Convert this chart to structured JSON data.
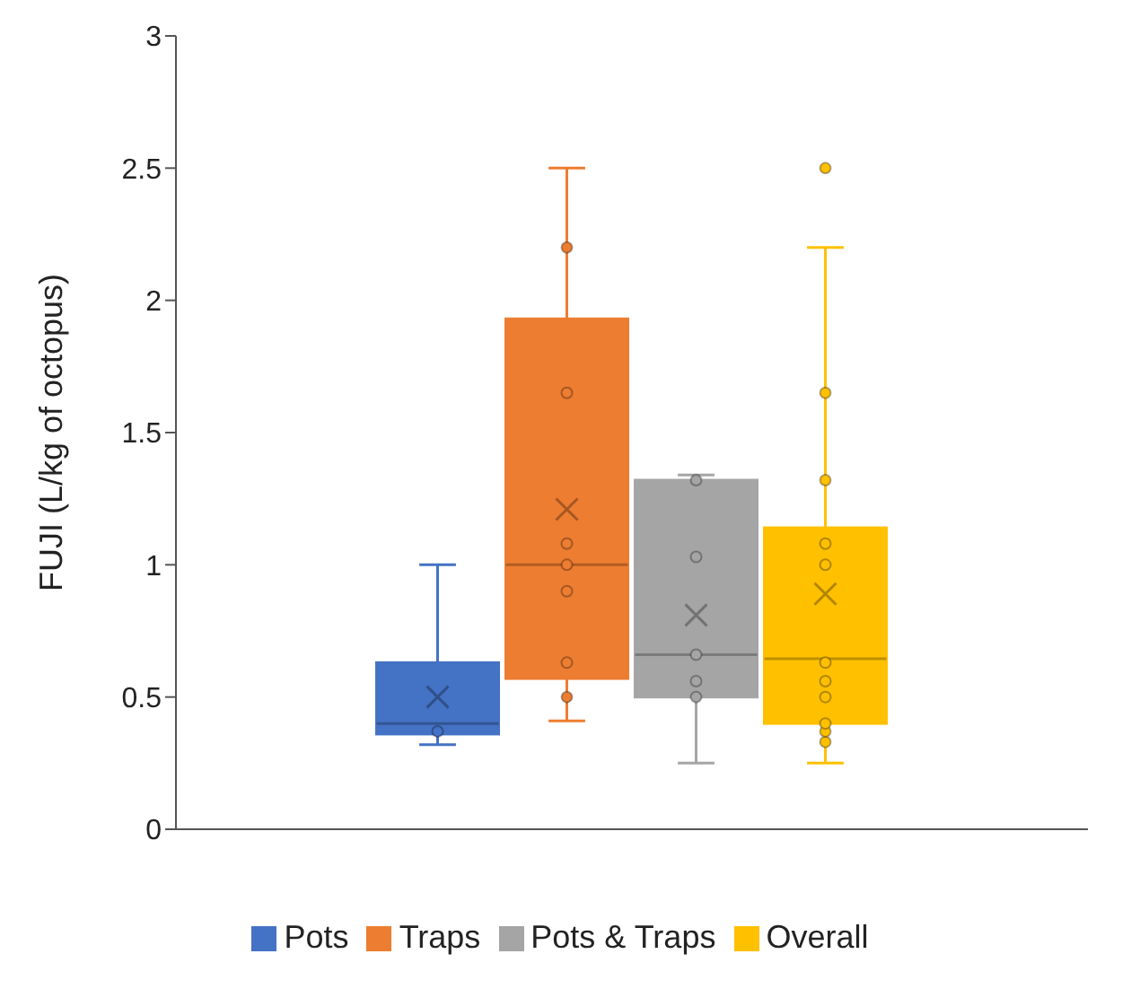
{
  "chart_data": {
    "type": "box",
    "ylabel": "FUJI (L/kg of octopus)",
    "categories": [
      null
    ],
    "ylim": [
      0,
      3
    ],
    "yticks": [
      0,
      0.5,
      1,
      1.5,
      2,
      2.5,
      3
    ],
    "legend": "bottom",
    "tick_labels": "y",
    "series": [
      {
        "name": "Pots",
        "color": "#4472c4",
        "boxes": [
          {
            "low": 0.32,
            "q1": 0.36,
            "median": 0.4,
            "q3": 0.63,
            "high": 1.0,
            "mean": 0.5,
            "outliers": [
              0.37
            ]
          }
        ]
      },
      {
        "name": "Traps",
        "color": "#ed7d31",
        "boxes": [
          {
            "low": 0.41,
            "q1": 0.57,
            "median": 1.0,
            "q3": 1.93,
            "high": 2.5,
            "mean": 1.21,
            "outliers": [
              0.5,
              0.63,
              0.9,
              1.0,
              1.08,
              1.65,
              2.2
            ]
          }
        ]
      },
      {
        "name": "Pots & Traps",
        "color": "#a5a5a5",
        "boxes": [
          {
            "low": 0.25,
            "q1": 0.5,
            "median": 0.66,
            "q3": 1.32,
            "high": 1.34,
            "mean": 0.81,
            "outliers": [
              0.5,
              0.56,
              0.66,
              1.03,
              1.32
            ]
          }
        ]
      },
      {
        "name": "Overall",
        "color": "#ffc000",
        "boxes": [
          {
            "low": 0.25,
            "q1": 0.4,
            "median": 0.645,
            "q3": 1.14,
            "high": 2.2,
            "mean": 0.89,
            "outliers": [
              0.33,
              0.37,
              0.4,
              0.5,
              0.56,
              0.63,
              1.0,
              1.08,
              1.32,
              1.65,
              2.5
            ]
          }
        ]
      }
    ]
  }
}
